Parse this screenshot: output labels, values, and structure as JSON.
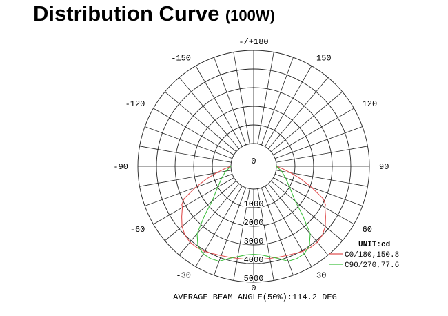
{
  "page": {
    "title": "Distribution Curve",
    "subtitle": "(100W)"
  },
  "chart_data": {
    "type": "polar",
    "unit_label": "UNIT:cd",
    "angle_labels": [
      {
        "deg": 0,
        "text": "0"
      },
      {
        "deg": 30,
        "text": "30"
      },
      {
        "deg": -30,
        "text": "-30"
      },
      {
        "deg": 60,
        "text": "60"
      },
      {
        "deg": -60,
        "text": "-60"
      },
      {
        "deg": 90,
        "text": "90"
      },
      {
        "deg": -90,
        "text": "-90"
      },
      {
        "deg": 120,
        "text": "120"
      },
      {
        "deg": -120,
        "text": "-120"
      },
      {
        "deg": 150,
        "text": "150"
      },
      {
        "deg": -150,
        "text": "-150"
      },
      {
        "deg": 180,
        "text": "-/+180"
      }
    ],
    "radial_ticks": [
      {
        "value": 0,
        "text": "0"
      },
      {
        "value": 1000,
        "text": "1000"
      },
      {
        "value": 2000,
        "text": "2000"
      },
      {
        "value": 3000,
        "text": "3000"
      },
      {
        "value": 4000,
        "text": "4000"
      },
      {
        "value": 5000,
        "text": "5000"
      }
    ],
    "r_max": 5000,
    "ring_count": 6,
    "spoke_step_deg": 10,
    "series": [
      {
        "name": "C0/180,150.8",
        "color": "#e05050",
        "points": [
          [
            -90,
            0
          ],
          [
            -85,
            350
          ],
          [
            -80,
            800
          ],
          [
            -75,
            1400
          ],
          [
            -70,
            2100
          ],
          [
            -65,
            2900
          ],
          [
            -62,
            3150
          ],
          [
            -60,
            3200
          ],
          [
            -55,
            3500
          ],
          [
            -50,
            3800
          ],
          [
            -45,
            4000
          ],
          [
            -40,
            4100
          ],
          [
            -35,
            4100
          ],
          [
            -30,
            4050
          ],
          [
            -25,
            3950
          ],
          [
            -20,
            3880
          ],
          [
            -15,
            3830
          ],
          [
            -10,
            3800
          ],
          [
            -5,
            3790
          ],
          [
            0,
            3790
          ],
          [
            5,
            3790
          ],
          [
            10,
            3800
          ],
          [
            15,
            3830
          ],
          [
            20,
            3880
          ],
          [
            25,
            3950
          ],
          [
            30,
            4050
          ],
          [
            35,
            4100
          ],
          [
            40,
            4100
          ],
          [
            45,
            4000
          ],
          [
            50,
            3800
          ],
          [
            55,
            3500
          ],
          [
            60,
            3200
          ],
          [
            62,
            3150
          ],
          [
            65,
            2900
          ],
          [
            70,
            2100
          ],
          [
            75,
            1400
          ],
          [
            80,
            800
          ],
          [
            85,
            350
          ],
          [
            90,
            0
          ]
        ]
      },
      {
        "name": "C90/270,77.6",
        "color": "#40c040",
        "points": [
          [
            -90,
            0
          ],
          [
            -80,
            300
          ],
          [
            -70,
            600
          ],
          [
            -60,
            1000
          ],
          [
            -50,
            1700
          ],
          [
            -45,
            2500
          ],
          [
            -40,
            3500
          ],
          [
            -35,
            4000
          ],
          [
            -30,
            4200
          ],
          [
            -25,
            4250
          ],
          [
            -20,
            4200
          ],
          [
            -15,
            3900
          ],
          [
            -10,
            3700
          ],
          [
            -5,
            3550
          ],
          [
            0,
            3500
          ],
          [
            5,
            3550
          ],
          [
            10,
            3700
          ],
          [
            15,
            3900
          ],
          [
            20,
            4200
          ],
          [
            25,
            4250
          ],
          [
            30,
            4200
          ],
          [
            35,
            4000
          ],
          [
            40,
            3500
          ],
          [
            45,
            2500
          ],
          [
            50,
            1700
          ],
          [
            60,
            1000
          ],
          [
            70,
            600
          ],
          [
            80,
            300
          ],
          [
            90,
            0
          ]
        ]
      }
    ],
    "footer": "AVERAGE BEAM ANGLE(50%):114.2 DEG"
  }
}
